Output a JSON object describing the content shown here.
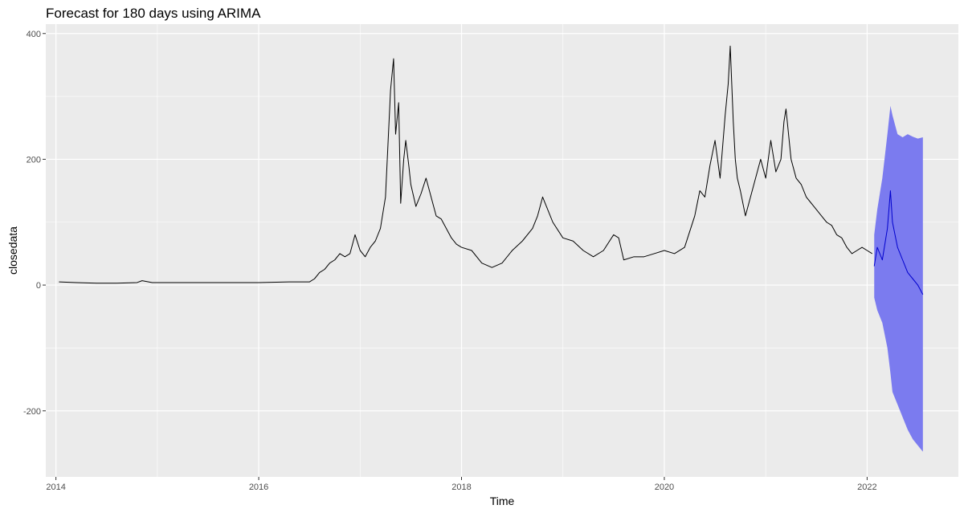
{
  "chart_data": {
    "type": "line",
    "title": "Forecast for 180 days using ARIMA",
    "xlabel": "Time",
    "ylabel": "closedata",
    "xlim": [
      2013.9,
      2022.9
    ],
    "ylim": [
      -305,
      415
    ],
    "x_ticks": [
      2014,
      2016,
      2018,
      2020,
      2022
    ],
    "x_tick_labels": [
      "2014",
      "2016",
      "2018",
      "2020",
      "2022"
    ],
    "y_ticks": [
      -200,
      0,
      200,
      400
    ],
    "y_tick_labels": [
      "-200",
      "0",
      "200",
      "400"
    ],
    "grid": true,
    "legend": "none",
    "colors": {
      "panel": "#ebebeb",
      "grid": "#ffffff",
      "history": "#000000",
      "forecast": "#0000cd",
      "interval": "#7b7bef"
    },
    "series": [
      {
        "kind": "history",
        "x": [
          2014.03,
          2014.2,
          2014.4,
          2014.6,
          2014.8,
          2014.85,
          2014.95,
          2015.1,
          2015.4,
          2015.7,
          2016.0,
          2016.3,
          2016.5,
          2016.55,
          2016.6,
          2016.65,
          2016.7,
          2016.75,
          2016.8,
          2016.85,
          2016.9,
          2016.95,
          2017.0,
          2017.05,
          2017.1,
          2017.15,
          2017.2,
          2017.25,
          2017.3,
          2017.33,
          2017.35,
          2017.38,
          2017.4,
          2017.43,
          2017.45,
          2017.48,
          2017.5,
          2017.55,
          2017.6,
          2017.65,
          2017.7,
          2017.75,
          2017.8,
          2017.85,
          2017.9,
          2017.95,
          2018.0,
          2018.1,
          2018.2,
          2018.3,
          2018.4,
          2018.5,
          2018.6,
          2018.7,
          2018.75,
          2018.8,
          2018.85,
          2018.9,
          2019.0,
          2019.1,
          2019.2,
          2019.3,
          2019.4,
          2019.5,
          2019.55,
          2019.6,
          2019.7,
          2019.8,
          2019.9,
          2020.0,
          2020.1,
          2020.2,
          2020.3,
          2020.35,
          2020.4,
          2020.45,
          2020.5,
          2020.55,
          2020.6,
          2020.63,
          2020.65,
          2020.68,
          2020.7,
          2020.72,
          2020.75,
          2020.8,
          2020.85,
          2020.9,
          2020.95,
          2021.0,
          2021.05,
          2021.1,
          2021.15,
          2021.18,
          2021.2,
          2021.25,
          2021.3,
          2021.35,
          2021.4,
          2021.45,
          2021.5,
          2021.55,
          2021.6,
          2021.65,
          2021.7,
          2021.75,
          2021.8,
          2021.85,
          2021.9,
          2021.95,
          2022.0,
          2022.05
        ],
        "values": [
          5,
          4,
          3,
          3,
          4,
          7,
          4,
          4,
          4,
          4,
          4,
          5,
          5,
          10,
          20,
          25,
          35,
          40,
          50,
          45,
          50,
          80,
          55,
          45,
          60,
          70,
          90,
          140,
          310,
          360,
          240,
          290,
          130,
          200,
          230,
          190,
          160,
          125,
          145,
          170,
          140,
          110,
          105,
          90,
          75,
          65,
          60,
          55,
          35,
          28,
          35,
          55,
          70,
          90,
          110,
          140,
          120,
          100,
          75,
          70,
          55,
          45,
          55,
          80,
          75,
          40,
          45,
          45,
          50,
          55,
          50,
          60,
          110,
          150,
          140,
          190,
          230,
          170,
          270,
          320,
          380,
          260,
          200,
          170,
          150,
          110,
          140,
          170,
          200,
          170,
          230,
          180,
          200,
          260,
          280,
          200,
          170,
          160,
          140,
          130,
          120,
          110,
          100,
          95,
          80,
          75,
          60,
          50,
          55,
          60,
          55,
          50
        ]
      },
      {
        "kind": "forecast",
        "x": [
          2022.07,
          2022.1,
          2022.15,
          2022.2,
          2022.23,
          2022.25,
          2022.3,
          2022.35,
          2022.4,
          2022.45,
          2022.5,
          2022.55
        ],
        "values": [
          30,
          60,
          40,
          90,
          150,
          100,
          60,
          40,
          20,
          10,
          0,
          -15
        ],
        "lower": [
          -20,
          -40,
          -60,
          -100,
          -140,
          -170,
          -190,
          -210,
          -230,
          -245,
          -255,
          -265
        ],
        "upper": [
          80,
          120,
          170,
          240,
          285,
          270,
          240,
          235,
          240,
          236,
          233,
          235
        ]
      }
    ]
  }
}
